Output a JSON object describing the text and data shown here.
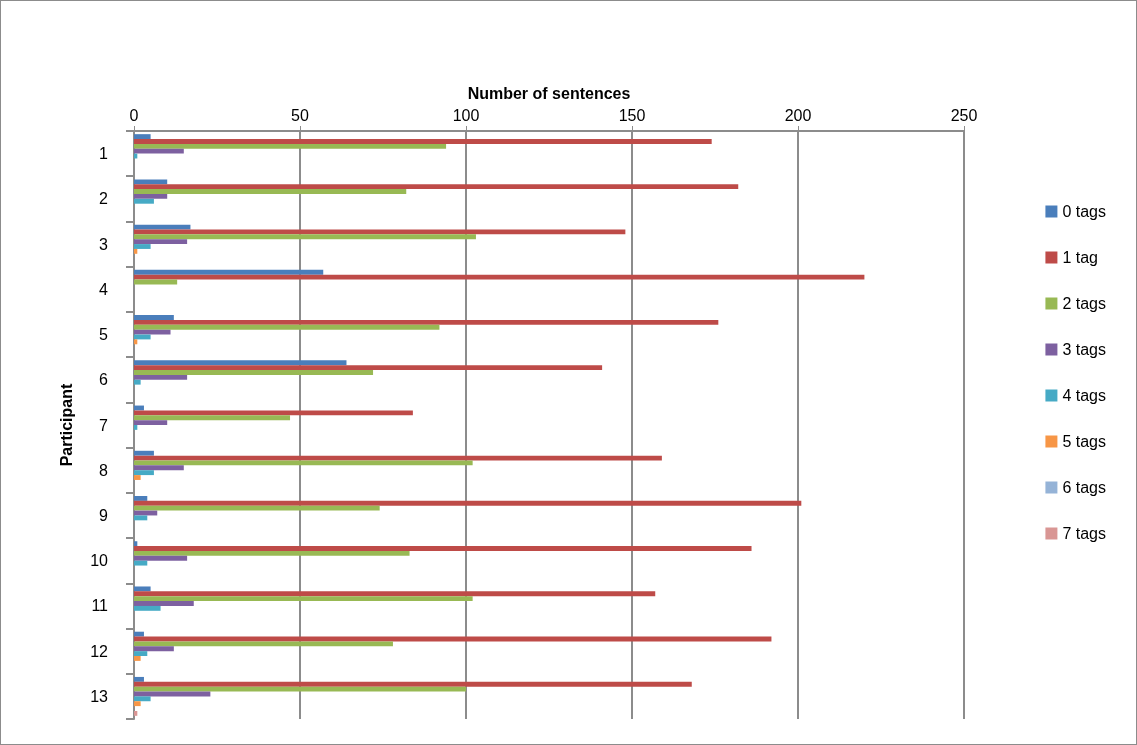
{
  "chart_data": {
    "type": "bar",
    "orientation": "horizontal",
    "xlabel": "Number of sentences",
    "ylabel": "Participant",
    "categories": [
      "1",
      "2",
      "3",
      "4",
      "5",
      "6",
      "7",
      "8",
      "9",
      "10",
      "11",
      "12",
      "13"
    ],
    "series": [
      {
        "name": "0 tags",
        "color": "#4a7ebb",
        "values": [
          5,
          10,
          17,
          57,
          12,
          64,
          3,
          6,
          4,
          1,
          5,
          3,
          3
        ]
      },
      {
        "name": "1 tag",
        "color": "#be4b48",
        "values": [
          174,
          182,
          148,
          220,
          176,
          141,
          84,
          159,
          201,
          186,
          157,
          192,
          168
        ]
      },
      {
        "name": "2 tags",
        "color": "#98b954",
        "values": [
          94,
          82,
          103,
          13,
          92,
          72,
          47,
          102,
          74,
          83,
          102,
          78,
          100
        ]
      },
      {
        "name": "3 tags",
        "color": "#7d60a0",
        "values": [
          15,
          10,
          16,
          0,
          11,
          16,
          10,
          15,
          7,
          16,
          18,
          12,
          23
        ]
      },
      {
        "name": "4 tags",
        "color": "#46aac5",
        "values": [
          1,
          6,
          5,
          0,
          5,
          2,
          1,
          6,
          4,
          4,
          8,
          4,
          5
        ]
      },
      {
        "name": "5 tags",
        "color": "#f79646",
        "values": [
          0,
          0,
          1,
          0,
          1,
          0,
          0,
          2,
          0,
          0,
          0,
          2,
          2
        ]
      },
      {
        "name": "6 tags",
        "color": "#95b3d7",
        "values": [
          0,
          0,
          0,
          0,
          0,
          0,
          0,
          0,
          0,
          0,
          0,
          0,
          0
        ]
      },
      {
        "name": "7 tags",
        "color": "#d99694",
        "values": [
          0,
          0,
          0,
          0,
          0,
          0,
          0,
          0,
          0,
          0,
          0,
          0,
          1
        ]
      }
    ],
    "xlim": [
      0,
      250
    ],
    "xticks": [
      0,
      50,
      100,
      150,
      200,
      250
    ],
    "grid": "x",
    "legend": "right"
  }
}
